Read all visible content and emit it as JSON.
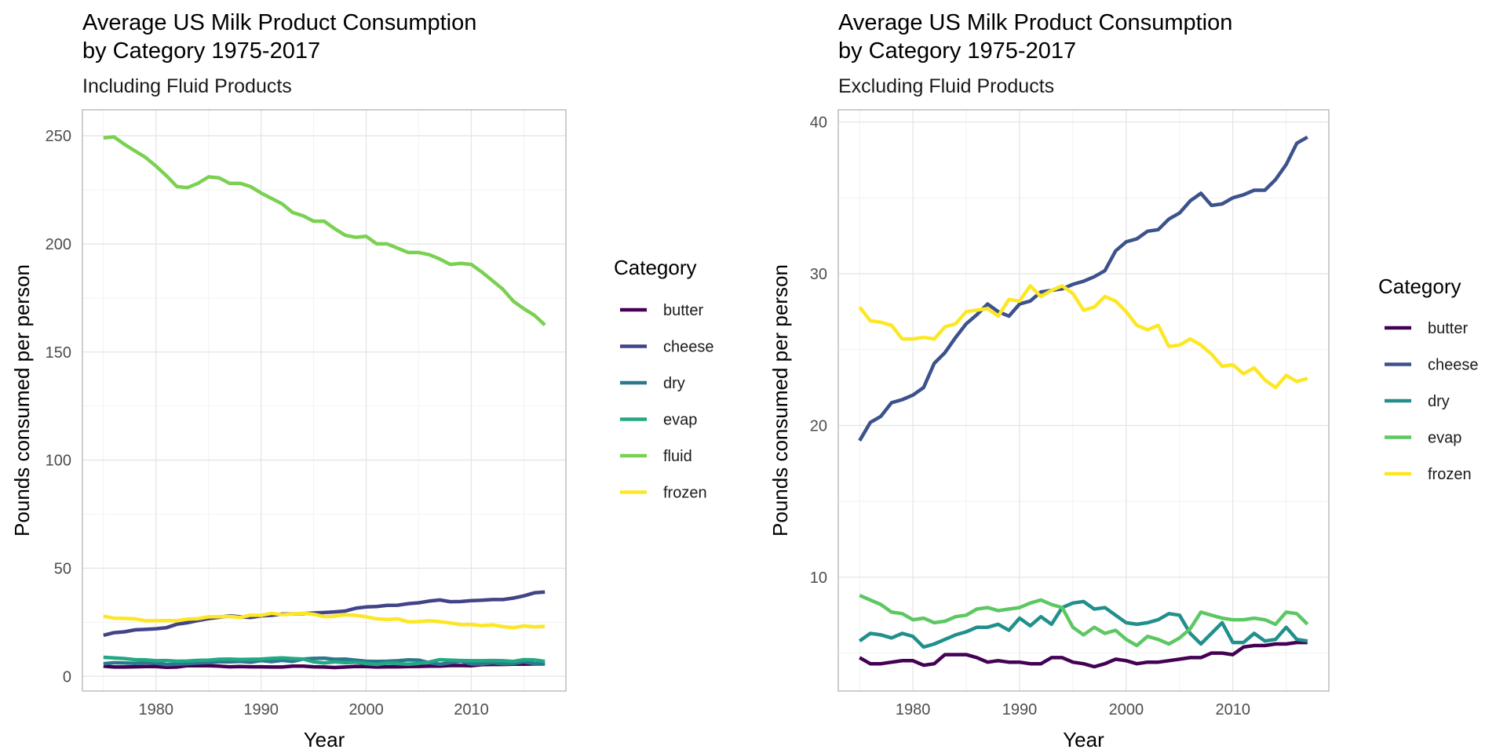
{
  "chart_data": [
    {
      "type": "line",
      "title": "Average US Milk Product Consumption\nby Category 1975-2017",
      "subtitle": "Including Fluid Products",
      "xlabel": "Year",
      "ylabel": "Pounds consumed per person",
      "xlim": [
        1973,
        2019
      ],
      "ylim": [
        -6.8,
        262
      ],
      "xticks": [
        1980,
        1990,
        2000,
        2010
      ],
      "yticks": [
        0,
        50,
        100,
        150,
        200,
        250
      ],
      "grid": true,
      "legend": {
        "title": "Category",
        "placement": "right"
      },
      "x": [
        1975,
        1976,
        1977,
        1978,
        1979,
        1980,
        1981,
        1982,
        1983,
        1984,
        1985,
        1986,
        1987,
        1988,
        1989,
        1990,
        1991,
        1992,
        1993,
        1994,
        1995,
        1996,
        1997,
        1998,
        1999,
        2000,
        2001,
        2002,
        2003,
        2004,
        2005,
        2006,
        2007,
        2008,
        2009,
        2010,
        2011,
        2012,
        2013,
        2014,
        2015,
        2016,
        2017
      ],
      "series": [
        {
          "name": "butter",
          "color": "#440154",
          "values": [
            4.7,
            4.3,
            4.3,
            4.4,
            4.5,
            4.5,
            4.2,
            4.3,
            4.9,
            4.9,
            4.9,
            4.7,
            4.4,
            4.5,
            4.4,
            4.4,
            4.3,
            4.3,
            4.7,
            4.7,
            4.4,
            4.3,
            4.1,
            4.3,
            4.6,
            4.5,
            4.3,
            4.4,
            4.4,
            4.5,
            4.6,
            4.7,
            4.7,
            5.0,
            5.0,
            4.9,
            5.4,
            5.5,
            5.5,
            5.6,
            5.6,
            5.7,
            5.7
          ]
        },
        {
          "name": "cheese",
          "color": "#414487",
          "values": [
            19.0,
            20.2,
            20.6,
            21.5,
            21.7,
            22.0,
            22.5,
            24.1,
            24.8,
            25.8,
            26.7,
            27.3,
            28.0,
            27.5,
            27.2,
            28.0,
            28.2,
            28.8,
            28.9,
            29.0,
            29.3,
            29.5,
            29.8,
            30.2,
            31.5,
            32.1,
            32.3,
            32.8,
            32.9,
            33.6,
            34.0,
            34.8,
            35.3,
            34.5,
            34.6,
            35.0,
            35.2,
            35.5,
            35.5,
            36.2,
            37.2,
            38.6,
            39.0
          ]
        },
        {
          "name": "dry",
          "color": "#2A788E",
          "values": [
            5.8,
            6.3,
            6.2,
            6.0,
            6.3,
            6.1,
            5.4,
            5.6,
            5.9,
            6.2,
            6.4,
            6.7,
            6.7,
            6.9,
            6.5,
            7.3,
            6.8,
            7.4,
            6.9,
            8.0,
            8.3,
            8.4,
            7.9,
            8.0,
            7.5,
            7.0,
            6.9,
            7.0,
            7.2,
            7.6,
            7.5,
            6.3,
            5.6,
            6.3,
            7.0,
            5.7,
            5.7,
            6.3,
            5.8,
            5.9,
            6.7,
            5.9,
            5.8
          ]
        },
        {
          "name": "evap",
          "color": "#22A884",
          "values": [
            8.8,
            8.5,
            8.2,
            7.7,
            7.6,
            7.2,
            7.3,
            7.0,
            7.1,
            7.4,
            7.5,
            7.9,
            8.0,
            7.8,
            7.9,
            8.0,
            8.3,
            8.5,
            8.2,
            8.0,
            6.7,
            6.2,
            6.7,
            6.3,
            6.5,
            5.9,
            5.5,
            6.1,
            5.9,
            5.6,
            6.0,
            6.6,
            7.7,
            7.5,
            7.3,
            7.2,
            7.2,
            7.3,
            7.2,
            6.9,
            7.7,
            7.6,
            6.9
          ]
        },
        {
          "name": "fluid",
          "color": "#7AD151",
          "values": [
            249,
            249.5,
            246,
            243,
            240,
            236,
            231.5,
            226.5,
            226,
            228,
            231,
            230.5,
            228,
            228,
            226.5,
            223.5,
            221,
            218.5,
            214.5,
            213,
            210.5,
            210.5,
            207,
            204,
            203,
            203.5,
            200,
            200,
            198,
            196,
            196,
            195,
            193,
            190.5,
            191,
            190.5,
            187,
            183,
            179,
            173.5,
            170,
            167,
            162.5
          ]
        },
        {
          "name": "frozen",
          "color": "#FDE725",
          "values": [
            27.8,
            26.9,
            26.8,
            26.6,
            25.7,
            25.7,
            25.8,
            25.7,
            26.5,
            26.7,
            27.5,
            27.6,
            27.7,
            27.2,
            28.3,
            28.2,
            29.2,
            28.5,
            28.9,
            29.2,
            28.7,
            27.6,
            27.8,
            28.5,
            28.2,
            27.5,
            26.6,
            26.3,
            26.6,
            25.2,
            25.3,
            25.7,
            25.3,
            24.7,
            23.9,
            24.0,
            23.4,
            23.8,
            23.0,
            22.5,
            23.3,
            22.9,
            23.1
          ]
        }
      ]
    },
    {
      "type": "line",
      "title": "Average US Milk Product Consumption\nby Category 1975-2017",
      "subtitle": "Excluding Fluid Products",
      "xlabel": "Year",
      "ylabel": "Pounds consumed per person",
      "xlim": [
        1973,
        2019
      ],
      "ylim": [
        2.5,
        40.8
      ],
      "xticks": [
        1980,
        1990,
        2000,
        2010
      ],
      "yticks": [
        10,
        20,
        30,
        40
      ],
      "grid": true,
      "legend": {
        "title": "Category",
        "placement": "right"
      },
      "x": [
        1975,
        1976,
        1977,
        1978,
        1979,
        1980,
        1981,
        1982,
        1983,
        1984,
        1985,
        1986,
        1987,
        1988,
        1989,
        1990,
        1991,
        1992,
        1993,
        1994,
        1995,
        1996,
        1997,
        1998,
        1999,
        2000,
        2001,
        2002,
        2003,
        2004,
        2005,
        2006,
        2007,
        2008,
        2009,
        2010,
        2011,
        2012,
        2013,
        2014,
        2015,
        2016,
        2017
      ],
      "series": [
        {
          "name": "butter",
          "color": "#440154",
          "values": [
            4.7,
            4.3,
            4.3,
            4.4,
            4.5,
            4.5,
            4.2,
            4.3,
            4.9,
            4.9,
            4.9,
            4.7,
            4.4,
            4.5,
            4.4,
            4.4,
            4.3,
            4.3,
            4.7,
            4.7,
            4.4,
            4.3,
            4.1,
            4.3,
            4.6,
            4.5,
            4.3,
            4.4,
            4.4,
            4.5,
            4.6,
            4.7,
            4.7,
            5.0,
            5.0,
            4.9,
            5.4,
            5.5,
            5.5,
            5.6,
            5.6,
            5.7,
            5.7
          ]
        },
        {
          "name": "cheese",
          "color": "#3B528B",
          "values": [
            19.0,
            20.2,
            20.6,
            21.5,
            21.7,
            22.0,
            22.5,
            24.1,
            24.8,
            25.8,
            26.7,
            27.3,
            28.0,
            27.5,
            27.2,
            28.0,
            28.2,
            28.8,
            28.9,
            29.0,
            29.3,
            29.5,
            29.8,
            30.2,
            31.5,
            32.1,
            32.3,
            32.8,
            32.9,
            33.6,
            34.0,
            34.8,
            35.3,
            34.5,
            34.6,
            35.0,
            35.2,
            35.5,
            35.5,
            36.2,
            37.2,
            38.6,
            39.0
          ]
        },
        {
          "name": "dry",
          "color": "#21908C",
          "values": [
            5.8,
            6.3,
            6.2,
            6.0,
            6.3,
            6.1,
            5.4,
            5.6,
            5.9,
            6.2,
            6.4,
            6.7,
            6.7,
            6.9,
            6.5,
            7.3,
            6.8,
            7.4,
            6.9,
            8.0,
            8.3,
            8.4,
            7.9,
            8.0,
            7.5,
            7.0,
            6.9,
            7.0,
            7.2,
            7.6,
            7.5,
            6.3,
            5.6,
            6.3,
            7.0,
            5.7,
            5.7,
            6.3,
            5.8,
            5.9,
            6.7,
            5.9,
            5.8
          ]
        },
        {
          "name": "evap",
          "color": "#5DC863",
          "values": [
            8.8,
            8.5,
            8.2,
            7.7,
            7.6,
            7.2,
            7.3,
            7.0,
            7.1,
            7.4,
            7.5,
            7.9,
            8.0,
            7.8,
            7.9,
            8.0,
            8.3,
            8.5,
            8.2,
            8.0,
            6.7,
            6.2,
            6.7,
            6.3,
            6.5,
            5.9,
            5.5,
            6.1,
            5.9,
            5.6,
            6.0,
            6.6,
            7.7,
            7.5,
            7.3,
            7.2,
            7.2,
            7.3,
            7.2,
            6.9,
            7.7,
            7.6,
            6.9
          ]
        },
        {
          "name": "frozen",
          "color": "#FDE725",
          "values": [
            27.8,
            26.9,
            26.8,
            26.6,
            25.7,
            25.7,
            25.8,
            25.7,
            26.5,
            26.7,
            27.5,
            27.6,
            27.7,
            27.2,
            28.3,
            28.2,
            29.2,
            28.5,
            28.9,
            29.2,
            28.7,
            27.6,
            27.8,
            28.5,
            28.2,
            27.5,
            26.6,
            26.3,
            26.6,
            25.2,
            25.3,
            25.7,
            25.3,
            24.7,
            23.9,
            24.0,
            23.4,
            23.8,
            23.0,
            22.5,
            23.3,
            22.9,
            23.1
          ]
        }
      ]
    }
  ]
}
